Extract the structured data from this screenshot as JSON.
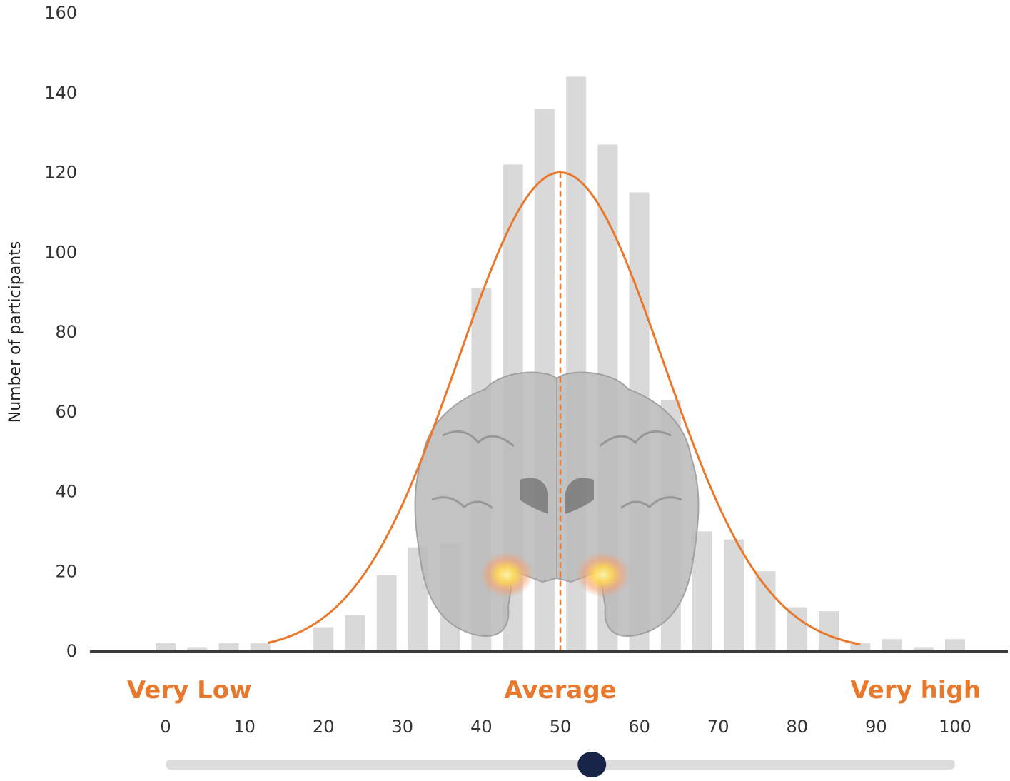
{
  "chart_data": {
    "type": "bar",
    "ylabel": "Number of participants",
    "ylim": [
      0,
      160
    ],
    "yticks": [
      0,
      20,
      40,
      60,
      80,
      100,
      120,
      140,
      160
    ],
    "xlim": [
      0,
      100
    ],
    "xticks": [
      0,
      10,
      20,
      30,
      40,
      50,
      60,
      70,
      80,
      90,
      100
    ],
    "bin_centers": [
      0,
      4,
      8,
      12,
      20,
      24,
      28,
      32,
      36,
      40,
      44,
      48,
      52,
      56,
      60,
      64,
      68,
      72,
      76,
      80,
      84,
      88,
      92,
      96,
      100
    ],
    "values": [
      2,
      1,
      2,
      2,
      6,
      9,
      19,
      26,
      27,
      91,
      122,
      136,
      144,
      127,
      115,
      63,
      30,
      28,
      20,
      11,
      10,
      2,
      3,
      1,
      3
    ],
    "curve": {
      "type": "normal",
      "mean": 50,
      "sd": 13,
      "peak": 120,
      "range": [
        13,
        88
      ]
    },
    "mean_line": 50,
    "zone_labels": [
      {
        "text": "Very Low",
        "x": 3
      },
      {
        "text": "Average",
        "x": 50
      },
      {
        "text": "Very high",
        "x": 95
      }
    ],
    "slider_value": 54,
    "colors": {
      "bar": "#d9d9d9",
      "curve": "#e8782c",
      "axis": "#3a3a3a",
      "zone": "#e8782c",
      "slider_track": "#dcdcdc",
      "slider_thumb": "#172448"
    }
  }
}
